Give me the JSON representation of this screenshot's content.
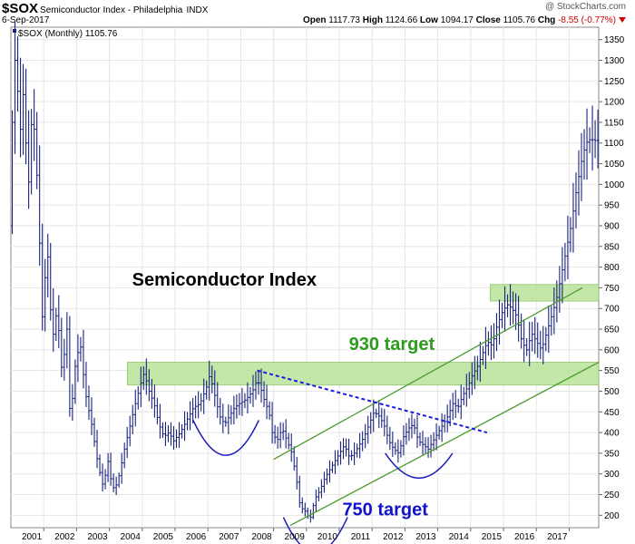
{
  "header": {
    "symbol": "$SOX",
    "name": "Semiconductor Index - Philadelphia",
    "exchange": "INDX",
    "copyright": "@ StockCharts.com",
    "date": "6-Sep-2017",
    "open_label": "Open",
    "open": "1117.73",
    "high_label": "High",
    "high": "1124.66",
    "low_label": "Low",
    "low": "1094.17",
    "close_label": "Close",
    "close": "1105.76",
    "chg_label": "Chg",
    "chg": "-8.55 (-0.77%)"
  },
  "colors": {
    "bars": "#1a237e",
    "zone": "#b9e39a",
    "zone_border": "#8fc56a",
    "channel": "#4a9a2a",
    "trend": "#1a1ae0",
    "arcs": "#1a1ab8",
    "green_text": "#2e9a1f",
    "blue_text": "#1212c8"
  },
  "chart_data": {
    "type": "ohlc",
    "legend": "$SOX (Monthly) 1105.76",
    "title": "Semiconductor Index",
    "y_ticks": [
      200,
      250,
      300,
      350,
      400,
      450,
      500,
      550,
      600,
      650,
      700,
      750,
      800,
      850,
      900,
      950,
      1000,
      1050,
      1100,
      1150,
      1200,
      1250,
      1300,
      1350
    ],
    "ylim": [
      170,
      1380
    ],
    "x_start": 2000.0,
    "x_end": 2017.9,
    "x_ticks": [
      2001,
      2002,
      2003,
      2004,
      2005,
      2006,
      2007,
      2008,
      2009,
      2010,
      2011,
      2012,
      2013,
      2014,
      2015,
      2016,
      2017
    ],
    "path_points": [
      [
        2000.0,
        900
      ],
      [
        2000.1,
        1200
      ],
      [
        2000.2,
        1350
      ],
      [
        2000.3,
        1100
      ],
      [
        2000.45,
        1250
      ],
      [
        2000.55,
        950
      ],
      [
        2000.7,
        1200
      ],
      [
        2000.85,
        1000
      ],
      [
        2001.0,
        680
      ],
      [
        2001.15,
        850
      ],
      [
        2001.3,
        620
      ],
      [
        2001.45,
        700
      ],
      [
        2001.6,
        540
      ],
      [
        2001.75,
        650
      ],
      [
        2001.85,
        420
      ],
      [
        2002.0,
        560
      ],
      [
        2002.15,
        620
      ],
      [
        2002.3,
        500
      ],
      [
        2002.5,
        420
      ],
      [
        2002.7,
        320
      ],
      [
        2002.85,
        270
      ],
      [
        2003.0,
        330
      ],
      [
        2003.1,
        280
      ],
      [
        2003.2,
        260
      ],
      [
        2003.35,
        300
      ],
      [
        2003.5,
        360
      ],
      [
        2003.65,
        410
      ],
      [
        2003.8,
        460
      ],
      [
        2004.0,
        520
      ],
      [
        2004.1,
        545
      ],
      [
        2004.25,
        500
      ],
      [
        2004.4,
        470
      ],
      [
        2004.55,
        420
      ],
      [
        2004.7,
        390
      ],
      [
        2004.85,
        400
      ],
      [
        2005.0,
        380
      ],
      [
        2005.2,
        400
      ],
      [
        2005.4,
        430
      ],
      [
        2005.6,
        460
      ],
      [
        2005.8,
        470
      ],
      [
        2006.0,
        510
      ],
      [
        2006.1,
        540
      ],
      [
        2006.25,
        490
      ],
      [
        2006.4,
        440
      ],
      [
        2006.55,
        420
      ],
      [
        2006.7,
        440
      ],
      [
        2006.85,
        460
      ],
      [
        2007.0,
        470
      ],
      [
        2007.2,
        480
      ],
      [
        2007.4,
        500
      ],
      [
        2007.5,
        520
      ],
      [
        2007.6,
        520
      ],
      [
        2007.75,
        480
      ],
      [
        2007.9,
        450
      ],
      [
        2008.0,
        400
      ],
      [
        2008.15,
        380
      ],
      [
        2008.3,
        410
      ],
      [
        2008.45,
        380
      ],
      [
        2008.6,
        350
      ],
      [
        2008.75,
        280
      ],
      [
        2008.85,
        220
      ],
      [
        2009.0,
        210
      ],
      [
        2009.15,
        190
      ],
      [
        2009.3,
        240
      ],
      [
        2009.45,
        260
      ],
      [
        2009.6,
        290
      ],
      [
        2009.75,
        310
      ],
      [
        2009.9,
        330
      ],
      [
        2010.05,
        350
      ],
      [
        2010.2,
        370
      ],
      [
        2010.35,
        340
      ],
      [
        2010.5,
        350
      ],
      [
        2010.65,
        370
      ],
      [
        2010.8,
        390
      ],
      [
        2010.95,
        420
      ],
      [
        2011.1,
        450
      ],
      [
        2011.25,
        440
      ],
      [
        2011.4,
        420
      ],
      [
        2011.55,
        380
      ],
      [
        2011.7,
        360
      ],
      [
        2011.85,
        350
      ],
      [
        2012.0,
        390
      ],
      [
        2012.15,
        410
      ],
      [
        2012.3,
        420
      ],
      [
        2012.45,
        380
      ],
      [
        2012.6,
        370
      ],
      [
        2012.75,
        360
      ],
      [
        2012.9,
        380
      ],
      [
        2013.05,
        400
      ],
      [
        2013.2,
        420
      ],
      [
        2013.35,
        440
      ],
      [
        2013.5,
        470
      ],
      [
        2013.65,
        460
      ],
      [
        2013.8,
        490
      ],
      [
        2013.95,
        510
      ],
      [
        2014.1,
        540
      ],
      [
        2014.25,
        560
      ],
      [
        2014.4,
        590
      ],
      [
        2014.55,
        620
      ],
      [
        2014.7,
        610
      ],
      [
        2014.85,
        660
      ],
      [
        2015.0,
        690
      ],
      [
        2015.15,
        710
      ],
      [
        2015.3,
        700
      ],
      [
        2015.45,
        680
      ],
      [
        2015.6,
        620
      ],
      [
        2015.75,
        600
      ],
      [
        2015.9,
        640
      ],
      [
        2016.05,
        620
      ],
      [
        2016.2,
        600
      ],
      [
        2016.35,
        640
      ],
      [
        2016.5,
        680
      ],
      [
        2016.65,
        720
      ],
      [
        2016.8,
        780
      ],
      [
        2016.95,
        840
      ],
      [
        2017.1,
        900
      ],
      [
        2017.25,
        980
      ],
      [
        2017.4,
        1050
      ],
      [
        2017.55,
        1100
      ],
      [
        2017.7,
        1110
      ],
      [
        2017.8,
        1106
      ]
    ],
    "resistance_zones": [
      {
        "x1": 2003.55,
        "x2": 2017.9,
        "y1": 515,
        "y2": 570
      },
      {
        "x1": 2014.6,
        "x2": 2017.9,
        "y1": 718,
        "y2": 758
      }
    ],
    "channel_lines": [
      [
        [
          2008.0,
          335
        ],
        [
          2017.4,
          750
        ]
      ],
      [
        [
          2008.5,
          175
        ],
        [
          2017.9,
          570
        ]
      ]
    ],
    "trendline": [
      [
        2007.5,
        550
      ],
      [
        2014.5,
        400
      ]
    ],
    "arcs": [
      {
        "x1": 2005.55,
        "x2": 2007.55,
        "y_start": 430,
        "y_bottom": 345
      },
      {
        "x1": 2008.3,
        "x2": 2010.25,
        "y_start": 195,
        "y_bottom": 110
      },
      {
        "x1": 2011.4,
        "x2": 2013.45,
        "y_start": 350,
        "y_bottom": 290
      }
    ],
    "annotations": [
      {
        "text": "Semiconductor Index",
        "color": "black",
        "x": 2006.5,
        "y": 755
      },
      {
        "text": "930 target",
        "color": "green",
        "x": 2011.6,
        "y": 600
      },
      {
        "text": "750 target",
        "color": "blue",
        "x": 2011.4,
        "y": 200
      }
    ]
  }
}
